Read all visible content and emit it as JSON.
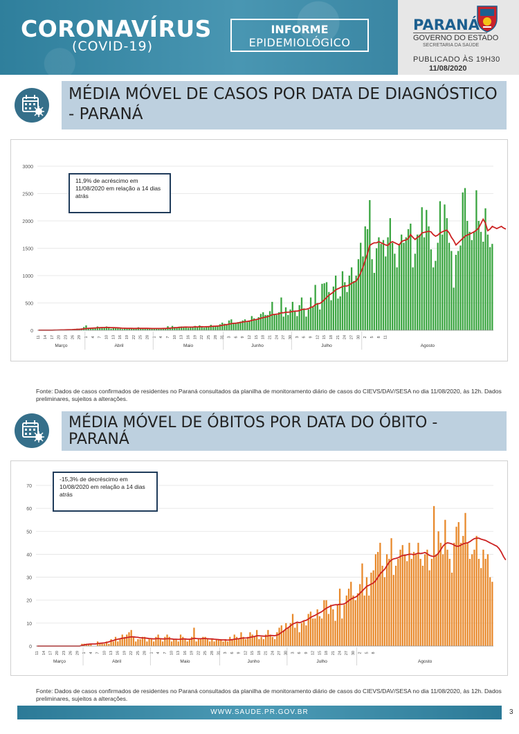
{
  "header": {
    "title": "CORONAVÍRUS",
    "subtitle": "(COVID-19)",
    "informe_line1": "INFORME",
    "informe_line2": "EPIDEMIOLÓGICO"
  },
  "government": {
    "state": "PARANÁ",
    "name": "GOVERNO DO ESTADO",
    "secretariat": "SECRETARIA DA SAÚDE",
    "published": "PUBLICADO ÀS 19H30",
    "date": "11/08/2020"
  },
  "colors": {
    "header_blue": "#3a8aa6",
    "section_bg": "#bdd0df",
    "cases_bar": "#3aa540",
    "deaths_bar": "#e8892b",
    "moving_average": "#cc2222"
  },
  "sections": [
    {
      "title": "MÉDIA MÓVEL DE CASOS POR DATA DE DIAGNÓSTICO - PARANÁ",
      "annotation": "11,9% de acréscimo em 11/08/2020 em relação a 14 dias atrás",
      "source": "Fonte: Dados de casos confirmados de residentes no Paraná consultados da planilha de monitoramento diário de casos do CIEVS/DAV/SESA no dia 11/08/2020, às 12h. Dados preliminares, sujeitos a alterações."
    },
    {
      "title": "MÉDIA MÓVEL DE ÓBITOS POR DATA DO ÓBITO - PARANÁ",
      "annotation": "-15,3% de decréscimo em 10/08/2020 em relação a 14 dias atrás",
      "source": "Fonte: Dados de casos confirmados de residentes no Paraná consultados da planilha de monitoramento diário de casos do CIEVS/DAV/SESA no dia 11/08/2020, às 12h. Dados preliminares, sujeitos a alterações."
    }
  ],
  "footer": {
    "url": "WWW.SAUDE.PR.GOV.BR",
    "page": "3"
  },
  "chart_data": [
    {
      "type": "bar",
      "title": "MÉDIA MÓVEL DE CASOS POR DATA DE DIAGNÓSTICO - PARANÁ",
      "x_start": "2020-03-11",
      "x_end": "2020-08-11",
      "ylim": [
        0,
        3000
      ],
      "yticks": [
        0,
        500,
        1000,
        1500,
        2000,
        2500,
        3000
      ],
      "grid": true,
      "xtick_labels": [
        "11",
        "14",
        "17",
        "20",
        "23",
        "26",
        "29",
        "1",
        "4",
        "7",
        "10",
        "13",
        "16",
        "19",
        "22",
        "25",
        "28",
        "1",
        "4",
        "7",
        "10",
        "13",
        "16",
        "19",
        "22",
        "25",
        "28",
        "31",
        "3",
        "6",
        "9",
        "12",
        "15",
        "18",
        "21",
        "24",
        "27",
        "30",
        "3",
        "6",
        "9",
        "12",
        "15",
        "18",
        "21",
        "24",
        "27",
        "30",
        "2",
        "5",
        "8",
        "11"
      ],
      "month_labels": [
        "Março",
        "Abril",
        "Maio",
        "Junho",
        "Julho",
        "Agosto"
      ],
      "bar_color": "#3aa540",
      "line_color": "#cc2222",
      "series": [
        {
          "type": "bar",
          "values": [
            2,
            1,
            1,
            3,
            4,
            6,
            5,
            4,
            8,
            12,
            15,
            10,
            12,
            18,
            20,
            22,
            25,
            30,
            28,
            35,
            60,
            90,
            40,
            45,
            30,
            50,
            70,
            55,
            60,
            50,
            70,
            45,
            30,
            40,
            55,
            38,
            30,
            22,
            40,
            35,
            30,
            28,
            30,
            45,
            55,
            38,
            30,
            25,
            40,
            35,
            28,
            30,
            30,
            40,
            35,
            30,
            28,
            75,
            35,
            80,
            60,
            55,
            65,
            70,
            55,
            60,
            45,
            50,
            60,
            80,
            55,
            90,
            70,
            50,
            75,
            60,
            100,
            80,
            75,
            70,
            110,
            140,
            120,
            100,
            180,
            200,
            140,
            120,
            150,
            160,
            180,
            200,
            150,
            180,
            260,
            220,
            200,
            240,
            300,
            330,
            280,
            280,
            350,
            520,
            300,
            280,
            330,
            600,
            250,
            420,
            280,
            380,
            520,
            350,
            260,
            460,
            600,
            400,
            250,
            380,
            600,
            420,
            830,
            500,
            380,
            850,
            860,
            880,
            700,
            550,
            800,
            1000,
            580,
            620,
            1080,
            880,
            700,
            1000,
            1150,
            900,
            1000,
            1300,
            1600,
            1350,
            1900,
            1850,
            2380,
            1300,
            1050,
            1500,
            1700,
            1580,
            1650,
            1350,
            1700,
            2050,
            1600,
            1400,
            1150,
            1580,
            1750,
            1600,
            1700,
            1850,
            1950,
            1150,
            1400,
            1750,
            1750,
            2250,
            1700,
            2200,
            1900,
            1480,
            1150,
            1270,
            1600,
            2360,
            1750,
            2300,
            2050,
            1600,
            1450,
            780,
            1380,
            1450,
            1550,
            2520,
            2600,
            2000,
            1800,
            1650,
            1800,
            2560,
            2000,
            1800,
            1620,
            2230,
            1750,
            1520,
            1580
          ]
        },
        {
          "type": "line",
          "values": [
            2,
            2,
            2,
            2,
            3,
            3,
            3,
            4,
            5,
            6,
            7,
            8,
            9,
            10,
            11,
            13,
            15,
            17,
            19,
            21,
            26,
            32,
            35,
            38,
            40,
            43,
            46,
            48,
            50,
            51,
            52,
            52,
            50,
            48,
            47,
            45,
            42,
            38,
            38,
            37,
            36,
            35,
            34,
            34,
            35,
            36,
            36,
            35,
            35,
            34,
            33,
            33,
            33,
            33,
            33,
            34,
            34,
            38,
            40,
            44,
            47,
            50,
            54,
            56,
            58,
            59,
            58,
            58,
            60,
            63,
            62,
            64,
            66,
            65,
            66,
            67,
            71,
            74,
            76,
            78,
            82,
            92,
            100,
            105,
            113,
            122,
            126,
            130,
            135,
            142,
            150,
            158,
            162,
            168,
            180,
            190,
            198,
            208,
            220,
            230,
            240,
            250,
            265,
            285,
            290,
            295,
            300,
            320,
            320,
            330,
            330,
            335,
            345,
            350,
            350,
            360,
            380,
            385,
            385,
            395,
            420,
            430,
            470,
            485,
            490,
            520,
            560,
            600,
            640,
            670,
            700,
            740,
            760,
            780,
            800,
            810,
            810,
            830,
            860,
            880,
            900,
            960,
            1050,
            1150,
            1280,
            1400,
            1550,
            1580,
            1600,
            1600,
            1620,
            1600,
            1580,
            1560,
            1550,
            1600,
            1620,
            1600,
            1580,
            1560,
            1620,
            1640,
            1650,
            1680,
            1750,
            1700,
            1660,
            1700,
            1720,
            1780,
            1790,
            1800,
            1810,
            1800,
            1750,
            1720,
            1740,
            1780,
            1800,
            1820,
            1830,
            1780,
            1700,
            1640,
            1560,
            1600,
            1640,
            1680,
            1720,
            1740,
            1760,
            1780,
            1800,
            1830,
            1870,
            1950,
            2030,
            1960,
            1820,
            1850,
            1900,
            1880,
            1860,
            1880,
            1900,
            1870,
            1850
          ]
        }
      ]
    },
    {
      "type": "bar",
      "title": "MÉDIA MÓVEL DE ÓBITOS POR DATA DO ÓBITO - PARANÁ",
      "x_start": "2020-03-11",
      "x_end": "2020-08-10",
      "ylim": [
        0,
        70
      ],
      "yticks": [
        0,
        10,
        20,
        30,
        40,
        50,
        60,
        70
      ],
      "grid": true,
      "xtick_labels": [
        "11",
        "14",
        "17",
        "20",
        "23",
        "26",
        "29",
        "1",
        "4",
        "7",
        "10",
        "13",
        "16",
        "19",
        "22",
        "25",
        "28",
        "1",
        "4",
        "7",
        "10",
        "13",
        "16",
        "19",
        "22",
        "25",
        "28",
        "31",
        "3",
        "6",
        "9",
        "12",
        "15",
        "18",
        "21",
        "24",
        "27",
        "30",
        "3",
        "6",
        "9",
        "12",
        "15",
        "18",
        "21",
        "24",
        "27",
        "30",
        "2",
        "5",
        "8"
      ],
      "month_labels": [
        "Março",
        "Abril",
        "Maio",
        "Junho",
        "Julho",
        "Agosto"
      ],
      "bar_color": "#e8892b",
      "line_color": "#cc2222",
      "series": [
        {
          "type": "bar",
          "values": [
            0,
            0,
            0,
            0,
            0,
            0,
            0,
            0,
            0,
            0,
            0,
            0,
            0,
            0,
            0,
            0,
            0,
            0,
            0,
            0,
            1,
            1,
            1,
            1,
            1,
            0,
            0,
            2,
            1,
            1,
            1,
            2,
            1,
            3,
            2,
            4,
            2,
            3,
            5,
            4,
            5,
            6,
            7,
            4,
            2,
            3,
            3,
            4,
            4,
            2,
            3,
            3,
            2,
            4,
            5,
            3,
            2,
            4,
            5,
            4,
            2,
            3,
            3,
            2,
            5,
            4,
            3,
            2,
            3,
            4,
            8,
            2,
            3,
            3,
            4,
            4,
            3,
            2,
            3,
            2,
            3,
            3,
            3,
            2,
            3,
            2,
            4,
            3,
            5,
            4,
            3,
            6,
            4,
            3,
            4,
            6,
            5,
            4,
            7,
            3,
            4,
            3,
            5,
            7,
            5,
            4,
            3,
            6,
            8,
            9,
            7,
            10,
            8,
            10,
            14,
            8,
            10,
            6,
            10,
            11,
            9,
            14,
            15,
            12,
            12,
            16,
            13,
            12,
            20,
            20,
            14,
            18,
            16,
            11,
            18,
            25,
            12,
            18,
            22,
            25,
            28,
            22,
            20,
            23,
            27,
            36,
            22,
            30,
            22,
            32,
            33,
            40,
            41,
            45,
            35,
            30,
            40,
            38,
            47,
            31,
            35,
            38,
            42,
            44,
            40,
            37,
            45,
            38,
            41,
            40,
            45,
            38,
            35,
            40,
            42,
            33,
            38,
            61,
            40,
            50,
            45,
            40,
            55,
            42,
            38,
            32,
            45,
            52,
            54,
            45,
            48,
            58,
            45,
            38,
            40,
            42,
            48,
            38,
            34,
            42,
            38,
            40,
            30,
            28
          ]
        },
        {
          "type": "line",
          "values": [
            0,
            0,
            0,
            0,
            0,
            0,
            0,
            0,
            0,
            0,
            0,
            0,
            0,
            0,
            0,
            0,
            0,
            0,
            0,
            0,
            0.3,
            0.5,
            0.7,
            0.8,
            0.9,
            0.9,
            0.9,
            1.1,
            1.2,
            1.3,
            1.4,
            1.6,
            1.8,
            2.2,
            2.4,
            2.8,
            3.0,
            3.2,
            3.4,
            3.5,
            3.7,
            3.9,
            4.0,
            4.0,
            3.9,
            3.8,
            3.6,
            3.6,
            3.5,
            3.4,
            3.3,
            3.2,
            3.1,
            3.2,
            3.3,
            3.2,
            3.1,
            3.1,
            3.2,
            3.2,
            3.1,
            3.0,
            3.0,
            2.9,
            3.0,
            3.1,
            3.1,
            3.0,
            3.0,
            3.1,
            3.4,
            3.3,
            3.2,
            3.2,
            3.3,
            3.3,
            3.2,
            3.1,
            3.1,
            3.0,
            2.9,
            2.8,
            2.7,
            2.7,
            2.7,
            2.6,
            2.7,
            2.8,
            3.0,
            3.1,
            3.2,
            3.4,
            3.5,
            3.5,
            3.6,
            3.8,
            4.0,
            4.2,
            4.5,
            4.5,
            4.4,
            4.3,
            4.3,
            4.4,
            4.6,
            4.6,
            4.5,
            4.8,
            5.2,
            6.0,
            6.5,
            7.5,
            8.0,
            8.8,
            9.6,
            10.0,
            10.4,
            10.2,
            10.5,
            11.0,
            11.2,
            11.8,
            12.5,
            13.0,
            13.4,
            14.0,
            14.5,
            15.0,
            15.8,
            16.5,
            17.0,
            17.5,
            17.8,
            18.0,
            18.0,
            18.2,
            18.2,
            18.4,
            19.0,
            19.8,
            20.5,
            21.0,
            21.3,
            22.0,
            23.0,
            24.0,
            25.0,
            26.0,
            26.5,
            27.0,
            27.5,
            28.5,
            30.0,
            31.5,
            32.5,
            33.5,
            35.0,
            36.5,
            37.5,
            38.0,
            38.2,
            38.5,
            39.0,
            39.5,
            39.5,
            39.8,
            40.0,
            40.0,
            39.8,
            40.2,
            40.5,
            40.3,
            40.5,
            40.8,
            40.2,
            39.5,
            39.2,
            39.0,
            39.5,
            40.5,
            42.0,
            43.5,
            44.5,
            45.0,
            44.8,
            44.5,
            44.0,
            43.5,
            43.5,
            44.0,
            44.5,
            44.8,
            45.0,
            45.5,
            46.2,
            46.8,
            47.0,
            47.0,
            46.6,
            46.3,
            46.0,
            45.5,
            45.0,
            44.5,
            44.0,
            43.5,
            42.5,
            41.0,
            39.0,
            37.5
          ]
        }
      ]
    }
  ]
}
